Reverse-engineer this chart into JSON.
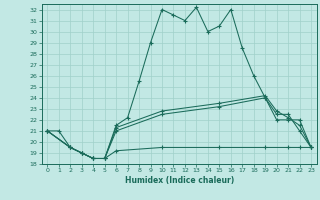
{
  "xlabel": "Humidex (Indice chaleur)",
  "bg_color": "#c2e8e4",
  "grid_color": "#a0d0ca",
  "line_color": "#1a6b5a",
  "xlim": [
    -0.5,
    23.5
  ],
  "ylim": [
    18,
    32.5
  ],
  "xticks": [
    0,
    1,
    2,
    3,
    4,
    5,
    6,
    7,
    8,
    9,
    10,
    11,
    12,
    13,
    14,
    15,
    16,
    17,
    18,
    19,
    20,
    21,
    22,
    23
  ],
  "yticks": [
    18,
    19,
    20,
    21,
    22,
    23,
    24,
    25,
    26,
    27,
    28,
    29,
    30,
    31,
    32
  ],
  "line1_x": [
    0,
    1,
    2,
    3,
    4,
    5,
    6,
    7,
    8,
    9,
    10,
    11,
    12,
    13,
    14,
    15,
    16,
    17,
    18,
    19,
    20,
    21,
    22,
    23
  ],
  "line1_y": [
    21,
    21,
    19.5,
    19,
    18.5,
    18.5,
    21.5,
    22.2,
    25.5,
    29,
    32,
    31.5,
    31,
    32.2,
    30,
    30.5,
    32,
    28.5,
    26,
    24,
    22,
    22,
    22,
    19.5
  ],
  "line2_x": [
    0,
    2,
    3,
    4,
    5,
    6,
    10,
    15,
    19,
    21,
    22,
    23
  ],
  "line2_y": [
    21,
    19.5,
    19,
    18.5,
    18.5,
    19.2,
    19.5,
    19.5,
    19.5,
    19.5,
    19.5,
    19.5
  ],
  "line3_x": [
    0,
    2,
    3,
    4,
    5,
    6,
    10,
    15,
    19,
    20,
    21,
    22,
    23
  ],
  "line3_y": [
    21,
    19.5,
    19,
    18.5,
    18.5,
    21.0,
    22.5,
    23.2,
    24.0,
    22.5,
    22.5,
    21.0,
    19.5
  ],
  "line4_x": [
    0,
    2,
    3,
    4,
    5,
    6,
    10,
    15,
    19,
    20,
    21,
    22,
    23
  ],
  "line4_y": [
    21,
    19.5,
    19,
    18.5,
    18.5,
    21.3,
    22.8,
    23.5,
    24.2,
    22.8,
    22.2,
    21.5,
    19.5
  ]
}
